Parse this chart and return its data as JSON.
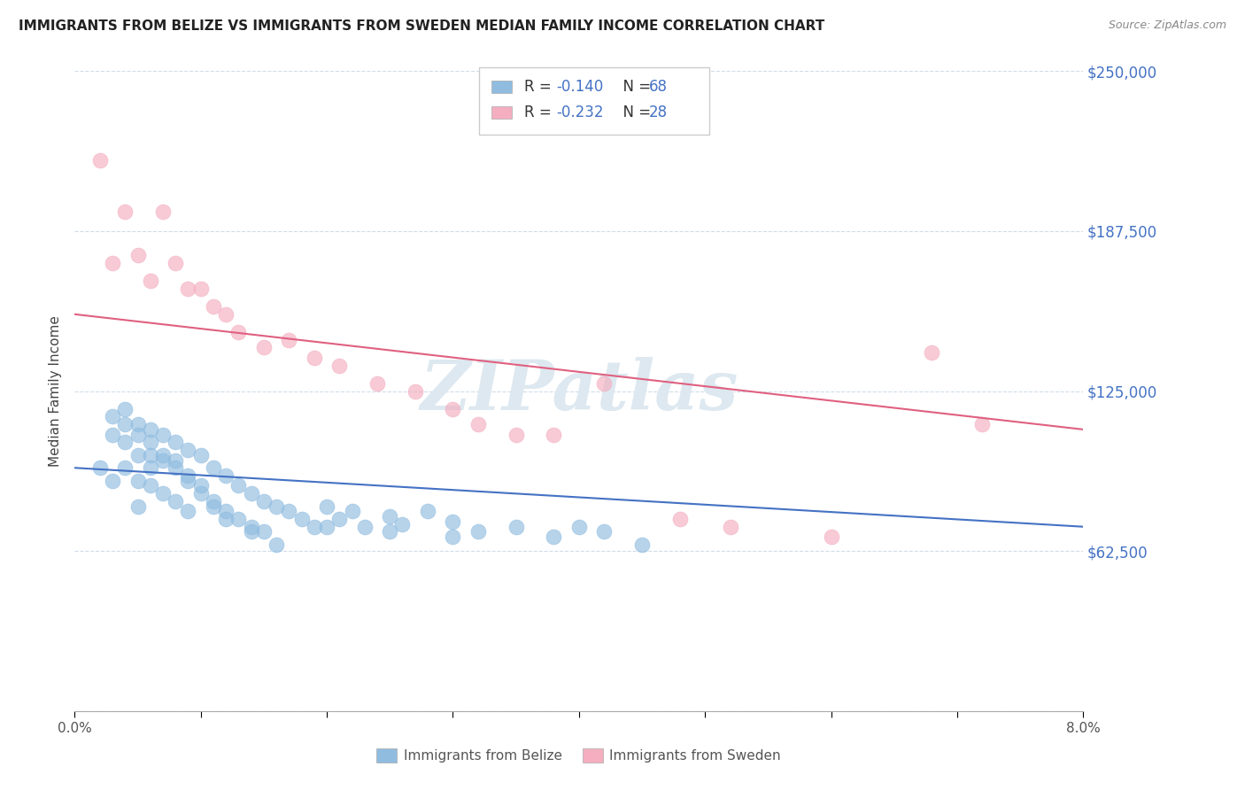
{
  "title": "IMMIGRANTS FROM BELIZE VS IMMIGRANTS FROM SWEDEN MEDIAN FAMILY INCOME CORRELATION CHART",
  "source_text": "Source: ZipAtlas.com",
  "ylabel": "Median Family Income",
  "xlim": [
    0.0,
    0.08
  ],
  "ylim": [
    0,
    250000
  ],
  "yticks": [
    0,
    62500,
    125000,
    187500,
    250000
  ],
  "ytick_labels": [
    "",
    "$62,500",
    "$125,000",
    "$187,500",
    "$250,000"
  ],
  "belize_color": "#90bce0",
  "sweden_color": "#f4aec0",
  "belize_line_color": "#4472c4",
  "sweden_line_color": "#e06080",
  "legend_text_color": "#4472c4",
  "watermark": "ZIPatlas",
  "watermark_color": "#dde8f0",
  "background_color": "#ffffff",
  "grid_color": "#d0dcea",
  "belize_scatter_x": [
    0.002,
    0.003,
    0.003,
    0.004,
    0.004,
    0.004,
    0.005,
    0.005,
    0.005,
    0.005,
    0.006,
    0.006,
    0.006,
    0.007,
    0.007,
    0.007,
    0.008,
    0.008,
    0.008,
    0.009,
    0.009,
    0.009,
    0.01,
    0.01,
    0.011,
    0.011,
    0.012,
    0.012,
    0.013,
    0.013,
    0.014,
    0.014,
    0.015,
    0.015,
    0.016,
    0.017,
    0.018,
    0.019,
    0.02,
    0.021,
    0.022,
    0.023,
    0.025,
    0.026,
    0.028,
    0.03,
    0.032,
    0.035,
    0.038,
    0.042,
    0.045,
    0.003,
    0.004,
    0.005,
    0.006,
    0.006,
    0.007,
    0.008,
    0.009,
    0.01,
    0.011,
    0.012,
    0.014,
    0.016,
    0.02,
    0.025,
    0.03,
    0.04
  ],
  "belize_scatter_y": [
    95000,
    108000,
    90000,
    118000,
    105000,
    95000,
    112000,
    100000,
    90000,
    80000,
    110000,
    100000,
    88000,
    108000,
    98000,
    85000,
    105000,
    95000,
    82000,
    102000,
    92000,
    78000,
    100000,
    88000,
    95000,
    82000,
    92000,
    78000,
    88000,
    75000,
    85000,
    72000,
    82000,
    70000,
    80000,
    78000,
    75000,
    72000,
    80000,
    75000,
    78000,
    72000,
    76000,
    73000,
    78000,
    74000,
    70000,
    72000,
    68000,
    70000,
    65000,
    115000,
    112000,
    108000,
    105000,
    95000,
    100000,
    98000,
    90000,
    85000,
    80000,
    75000,
    70000,
    65000,
    72000,
    70000,
    68000,
    72000
  ],
  "sweden_scatter_x": [
    0.002,
    0.003,
    0.004,
    0.005,
    0.006,
    0.007,
    0.008,
    0.009,
    0.01,
    0.011,
    0.012,
    0.013,
    0.015,
    0.017,
    0.019,
    0.021,
    0.024,
    0.027,
    0.03,
    0.032,
    0.035,
    0.038,
    0.042,
    0.048,
    0.052,
    0.06,
    0.068,
    0.072
  ],
  "sweden_scatter_y": [
    215000,
    175000,
    195000,
    178000,
    168000,
    195000,
    175000,
    165000,
    165000,
    158000,
    155000,
    148000,
    142000,
    145000,
    138000,
    135000,
    128000,
    125000,
    118000,
    112000,
    108000,
    108000,
    128000,
    75000,
    72000,
    68000,
    140000,
    112000
  ],
  "belize_trend_x": [
    0.0,
    0.08
  ],
  "belize_trend_y": [
    95000,
    72000
  ],
  "sweden_trend_x": [
    0.0,
    0.08
  ],
  "sweden_trend_y": [
    155000,
    110000
  ]
}
